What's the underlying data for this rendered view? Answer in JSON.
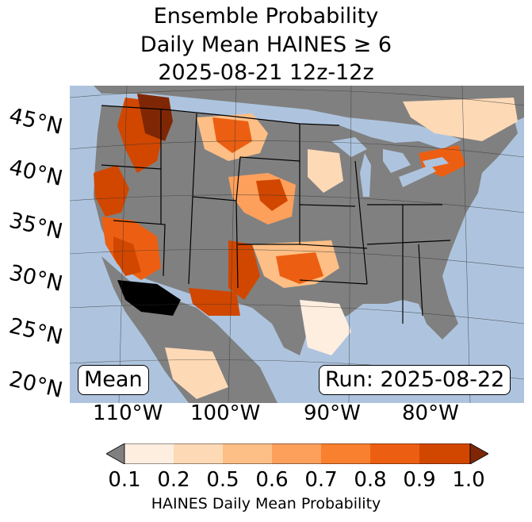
{
  "title": {
    "line1": "Ensemble Probability",
    "line2": "Daily Mean HAINES ≥ 6",
    "line3": "2025-08-21 12z-12z"
  },
  "map": {
    "ocean_color": "#aec4de",
    "land_color": "#808080",
    "lat_labels": [
      "45°N",
      "40°N",
      "35°N",
      "30°N",
      "25°N",
      "20°N"
    ],
    "lon_labels": [
      "110°W",
      "100°W",
      "90°W",
      "80°W"
    ],
    "left_box": "Mean",
    "right_box": "Run: 2025-08-22"
  },
  "colorbar": {
    "ticks": [
      "0.1",
      "0.2",
      "0.5",
      "0.6",
      "0.7",
      "0.8",
      "0.9",
      "1.0"
    ],
    "colors": [
      "#fdeee0",
      "#fdd9b6",
      "#fdbf86",
      "#fda05c",
      "#f9802f",
      "#ec5f12",
      "#d14700"
    ],
    "under_color": "#808080",
    "over_color": "#7f2704",
    "label": "HAINES Daily Mean Probability"
  }
}
